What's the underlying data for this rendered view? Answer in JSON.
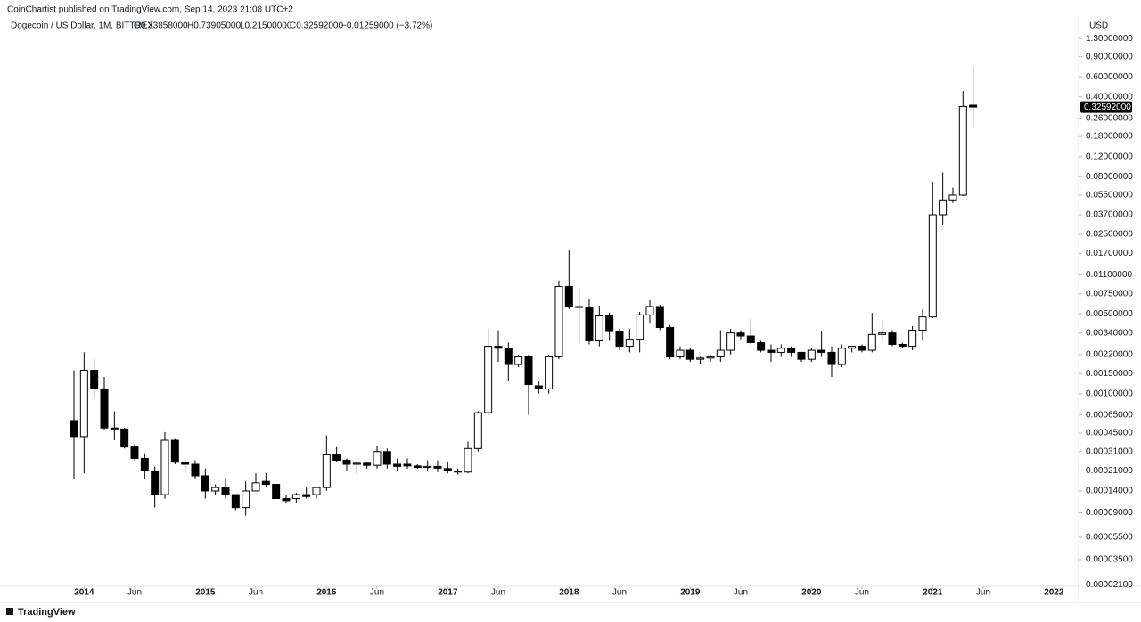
{
  "chart_data": {
    "type": "candlestick",
    "publisher": "CoinChartist published on TradingView.com, Sep 14, 2023 21:08 UTC+2",
    "symbol": "Dogecoin / US Dollar, 1M, BITTREX",
    "header": {
      "open": "O0.33858000",
      "high": "H0.73905000",
      "low": "L0.21500000",
      "close": "C0.32592000",
      "change": "−0.01259000 (−3.72%)"
    },
    "last_price": "0.32592000",
    "currency": "USD",
    "brand": "TradingView",
    "log_scale": true,
    "grid": false,
    "up_color": "#ffffff",
    "down_color": "#000000",
    "outline_color": "#000000",
    "categories": [
      "2013-12",
      "2014-01",
      "2014-02",
      "2014-03",
      "2014-04",
      "2014-05",
      "2014-06",
      "2014-07",
      "2014-08",
      "2014-09",
      "2014-10",
      "2014-11",
      "2014-12",
      "2015-01",
      "2015-02",
      "2015-03",
      "2015-04",
      "2015-05",
      "2015-06",
      "2015-07",
      "2015-08",
      "2015-09",
      "2015-10",
      "2015-11",
      "2015-12",
      "2016-01",
      "2016-02",
      "2016-03",
      "2016-04",
      "2016-05",
      "2016-06",
      "2016-07",
      "2016-08",
      "2016-09",
      "2016-10",
      "2016-11",
      "2016-12",
      "2017-01",
      "2017-02",
      "2017-03",
      "2017-04",
      "2017-05",
      "2017-06",
      "2017-07",
      "2017-08",
      "2017-09",
      "2017-10",
      "2017-11",
      "2017-12",
      "2018-01",
      "2018-02",
      "2018-03",
      "2018-04",
      "2018-05",
      "2018-06",
      "2018-07",
      "2018-08",
      "2018-09",
      "2018-10",
      "2018-11",
      "2018-12",
      "2019-01",
      "2019-02",
      "2019-03",
      "2019-04",
      "2019-05",
      "2019-06",
      "2019-07",
      "2019-08",
      "2019-09",
      "2019-10",
      "2019-11",
      "2019-12",
      "2020-01",
      "2020-02",
      "2020-03",
      "2020-04",
      "2020-05",
      "2020-06",
      "2020-07",
      "2020-08",
      "2020-09",
      "2020-10",
      "2020-11",
      "2020-12",
      "2021-01",
      "2021-02",
      "2021-03",
      "2021-04",
      "2021-05"
    ],
    "open": [
      0.00058,
      0.00042,
      0.0016,
      0.0011,
      0.0005,
      0.00049,
      0.00034,
      0.00027,
      0.00021,
      0.00013,
      0.00039,
      0.00025,
      0.00024,
      0.00019,
      0.00014,
      0.00015,
      0.00013,
      0.0001,
      0.00014,
      0.00017,
      0.00016,
      0.00012,
      0.00012,
      0.00013,
      0.00013,
      0.00015,
      0.00029,
      0.00026,
      0.00024,
      0.000245,
      0.000235,
      0.00031,
      0.00024,
      0.00024,
      0.000232,
      0.000225,
      0.00023,
      0.00022,
      0.00021,
      0.000205,
      0.00033,
      0.00068,
      0.0026,
      0.0025,
      0.0018,
      0.0021,
      0.00117,
      0.0011,
      0.0021,
      0.0087,
      0.0058,
      0.0057,
      0.0029,
      0.0048,
      0.0035,
      0.0026,
      0.003,
      0.0049,
      0.0058,
      0.0038,
      0.0021,
      0.0024,
      0.002,
      0.00205,
      0.0021,
      0.0024,
      0.0034,
      0.0032,
      0.0028,
      0.0024,
      0.0023,
      0.0025,
      0.0023,
      0.002,
      0.0024,
      0.0023,
      0.0018,
      0.0025,
      0.0026,
      0.0024,
      0.0033,
      0.0034,
      0.0027,
      0.0026,
      0.0036,
      0.0047,
      0.037,
      0.05,
      0.055,
      0.33858
    ],
    "high": [
      0.0016,
      0.0023,
      0.002,
      0.0014,
      0.0007,
      0.0005,
      0.00036,
      0.0003,
      0.00023,
      0.00046,
      0.0004,
      0.00026,
      0.00026,
      0.00022,
      0.00016,
      0.00018,
      0.00013,
      0.00017,
      0.0002,
      0.0002,
      0.00016,
      0.00013,
      0.000135,
      0.00015,
      0.00015,
      0.00043,
      0.00034,
      0.00027,
      0.00025,
      0.00025,
      0.00035,
      0.00033,
      0.00027,
      0.00027,
      0.00024,
      0.00026,
      0.00026,
      0.00025,
      0.00022,
      0.00038,
      0.0007,
      0.0037,
      0.0036,
      0.0028,
      0.0022,
      0.0022,
      0.0013,
      0.0022,
      0.0098,
      0.018,
      0.0085,
      0.0068,
      0.0059,
      0.0051,
      0.0037,
      0.0037,
      0.0052,
      0.0066,
      0.006,
      0.004,
      0.0026,
      0.0025,
      0.0021,
      0.0022,
      0.0036,
      0.0037,
      0.0036,
      0.0045,
      0.0029,
      0.0027,
      0.0027,
      0.0026,
      0.0023,
      0.0025,
      0.0035,
      0.0026,
      0.0027,
      0.0026,
      0.0027,
      0.0051,
      0.0044,
      0.0036,
      0.0028,
      0.0039,
      0.0055,
      0.072,
      0.087,
      0.064,
      0.45,
      0.73905
    ],
    "low": [
      0.00018,
      0.0002,
      0.0009,
      0.00048,
      0.00039,
      0.00033,
      0.00026,
      0.00018,
      0.0001,
      0.00012,
      0.00024,
      0.0002,
      0.00018,
      0.00012,
      0.00013,
      0.00012,
      9.5e-05,
      8.5e-05,
      0.00014,
      0.00015,
      0.00012,
      0.00011,
      0.00011,
      0.00012,
      0.00012,
      0.00014,
      0.00025,
      0.00021,
      0.0002,
      0.00022,
      0.00022,
      0.00022,
      0.00021,
      0.00022,
      0.00022,
      0.00021,
      0.000205,
      0.0002,
      0.000195,
      0.0002,
      0.00031,
      0.00065,
      0.0019,
      0.0013,
      0.0017,
      0.00065,
      0.001,
      0.001,
      0.002,
      0.0055,
      0.0028,
      0.0027,
      0.0026,
      0.0029,
      0.0024,
      0.0023,
      0.0023,
      0.0042,
      0.0036,
      0.002,
      0.002,
      0.0019,
      0.0018,
      0.0019,
      0.0019,
      0.0022,
      0.003,
      0.0027,
      0.0023,
      0.0019,
      0.0021,
      0.0021,
      0.0019,
      0.0019,
      0.0021,
      0.0014,
      0.0017,
      0.0023,
      0.0023,
      0.0023,
      0.003,
      0.0026,
      0.0025,
      0.0024,
      0.0029,
      0.0046,
      0.03,
      0.047,
      0.054,
      0.215
    ],
    "close": [
      0.00042,
      0.0016,
      0.0011,
      0.0005,
      0.00049,
      0.00034,
      0.00027,
      0.00021,
      0.00013,
      0.00039,
      0.00025,
      0.00024,
      0.00019,
      0.00014,
      0.00015,
      0.00013,
      0.0001,
      0.00014,
      0.000165,
      0.00016,
      0.00012,
      0.000115,
      0.00013,
      0.000125,
      0.00015,
      0.00029,
      0.00026,
      0.00024,
      0.000245,
      0.000235,
      0.00031,
      0.00024,
      0.00023,
      0.000232,
      0.000225,
      0.00023,
      0.000222,
      0.00021,
      0.000205,
      0.00033,
      0.00068,
      0.0026,
      0.0025,
      0.0018,
      0.0021,
      0.0012,
      0.0011,
      0.0021,
      0.0087,
      0.0058,
      0.0057,
      0.0029,
      0.0048,
      0.0035,
      0.0026,
      0.003,
      0.0049,
      0.0058,
      0.0038,
      0.0021,
      0.0024,
      0.002,
      0.00205,
      0.0021,
      0.0024,
      0.0034,
      0.0032,
      0.0028,
      0.0024,
      0.0023,
      0.0025,
      0.0023,
      0.002,
      0.0024,
      0.0023,
      0.0018,
      0.0025,
      0.0026,
      0.0024,
      0.0033,
      0.0034,
      0.0027,
      0.0026,
      0.0036,
      0.0047,
      0.037,
      0.05,
      0.055,
      0.33,
      0.32592
    ],
    "ylim": [
      2.04e-05,
      1.48
    ],
    "yticks": [
      {
        "value": 1.3,
        "label": "1.30000000"
      },
      {
        "value": 0.9,
        "label": "0.90000000"
      },
      {
        "value": 0.6,
        "label": "0.60000000"
      },
      {
        "value": 0.4,
        "label": "0.40000000"
      },
      {
        "value": 0.26,
        "label": "0.26000000"
      },
      {
        "value": 0.18,
        "label": "0.18000000"
      },
      {
        "value": 0.12,
        "label": "0.12000000"
      },
      {
        "value": 0.08,
        "label": "0.08000000"
      },
      {
        "value": 0.055,
        "label": "0.05500000"
      },
      {
        "value": 0.037,
        "label": "0.03700000"
      },
      {
        "value": 0.025,
        "label": "0.02500000"
      },
      {
        "value": 0.017,
        "label": "0.01700000"
      },
      {
        "value": 0.011,
        "label": "0.01100000"
      },
      {
        "value": 0.0075,
        "label": "0.00750000"
      },
      {
        "value": 0.005,
        "label": "0.00500000"
      },
      {
        "value": 0.0034,
        "label": "0.00340000"
      },
      {
        "value": 0.0022,
        "label": "0.00220000"
      },
      {
        "value": 0.0015,
        "label": "0.00150000"
      },
      {
        "value": 0.001,
        "label": "0.00100000"
      },
      {
        "value": 0.00065,
        "label": "0.00065000"
      },
      {
        "value": 0.00045,
        "label": "0.00045000"
      },
      {
        "value": 0.00031,
        "label": "0.00031000"
      },
      {
        "value": 0.00021,
        "label": "0.00021000"
      },
      {
        "value": 0.00014,
        "label": "0.00014000"
      },
      {
        "value": 9e-05,
        "label": "0.00009000"
      },
      {
        "value": 5.5e-05,
        "label": "0.00005500"
      },
      {
        "value": 3.5e-05,
        "label": "0.00003500"
      },
      {
        "value": 2.1e-05,
        "label": "0.00002100"
      }
    ],
    "xticks": [
      {
        "value": "2014-01",
        "label": "2014"
      },
      {
        "value": "2014-06",
        "label": "Jun"
      },
      {
        "value": "2015-01",
        "label": "2015"
      },
      {
        "value": "2015-06",
        "label": "Jun"
      },
      {
        "value": "2016-01",
        "label": "2016"
      },
      {
        "value": "2016-06",
        "label": "Jun"
      },
      {
        "value": "2017-01",
        "label": "2017"
      },
      {
        "value": "2017-06",
        "label": "Jun"
      },
      {
        "value": "2018-01",
        "label": "2018"
      },
      {
        "value": "2018-06",
        "label": "Jun"
      },
      {
        "value": "2019-01",
        "label": "2019"
      },
      {
        "value": "2019-06",
        "label": "Jun"
      },
      {
        "value": "2020-01",
        "label": "2020"
      },
      {
        "value": "2020-06",
        "label": "Jun"
      },
      {
        "value": "2021-01",
        "label": "2021"
      },
      {
        "value": "2021-06",
        "label": "Jun"
      },
      {
        "value": "2022-01",
        "label": "2022"
      }
    ]
  }
}
